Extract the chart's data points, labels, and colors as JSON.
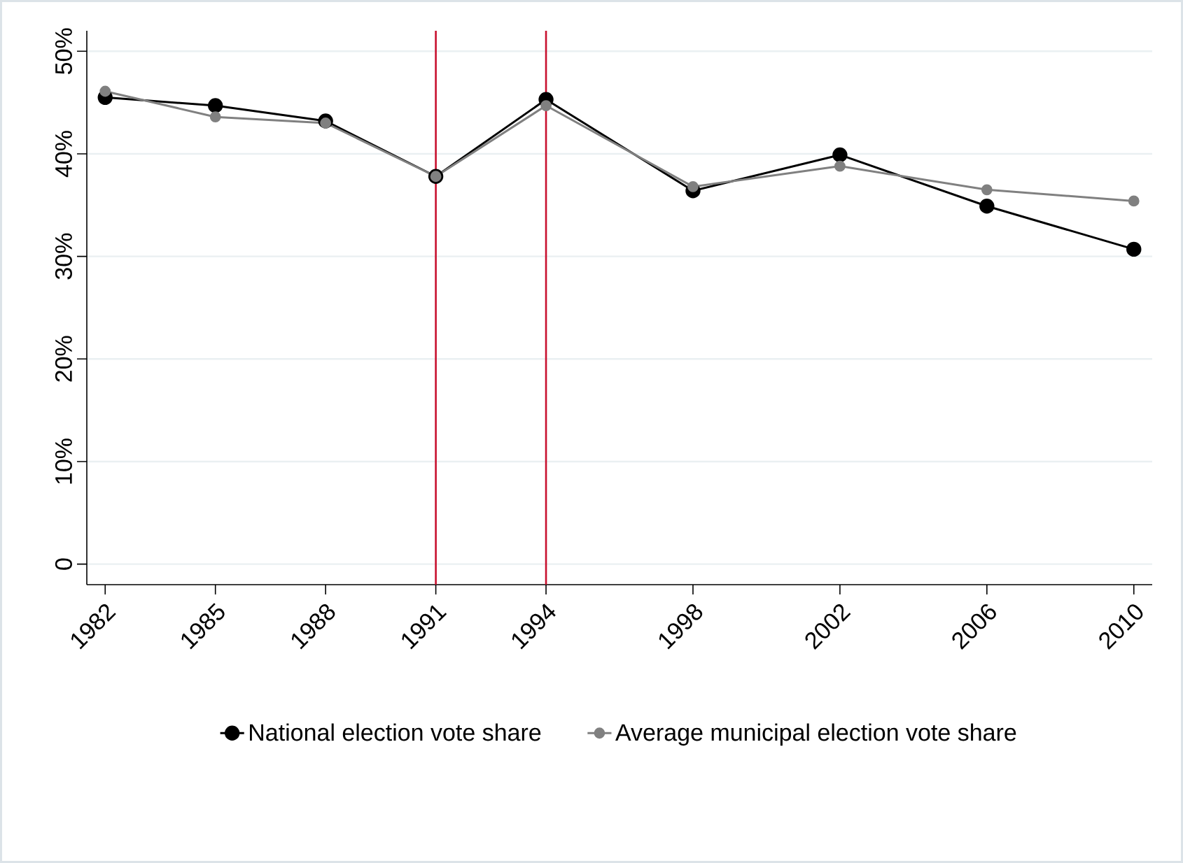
{
  "chart_data": {
    "type": "line",
    "x": [
      1982,
      1985,
      1988,
      1991,
      1994,
      1998,
      2002,
      2006,
      2010
    ],
    "series": [
      {
        "name": "National election vote share",
        "color": "#000000",
        "values": [
          45.5,
          44.7,
          43.2,
          37.8,
          45.3,
          36.4,
          39.9,
          34.9,
          30.7
        ]
      },
      {
        "name": "Average municipal election vote share",
        "color": "#808080",
        "values": [
          46.1,
          43.6,
          43.0,
          37.8,
          44.7,
          36.8,
          38.8,
          36.5,
          35.4
        ]
      }
    ],
    "xlim": [
      1981.5,
      2010.5
    ],
    "ylim": [
      -2,
      52
    ],
    "xticks": [
      1982,
      1985,
      1988,
      1991,
      1994,
      1998,
      2002,
      2006,
      2010
    ],
    "yticks": [
      0,
      {
        "value": 10,
        "label": "10%"
      },
      {
        "value": 20,
        "label": "20%"
      },
      {
        "value": 30,
        "label": "30%"
      },
      {
        "value": 40,
        "label": "40%"
      },
      {
        "value": 50,
        "label": "50%"
      }
    ],
    "ref_lines": [
      {
        "axis": "x",
        "value": 1991,
        "color": "#c8102e"
      },
      {
        "axis": "x",
        "value": 1994,
        "color": "#c8102e"
      }
    ],
    "grid": "y",
    "legend": "bottom",
    "marker": "circle",
    "line_style": "solid"
  }
}
